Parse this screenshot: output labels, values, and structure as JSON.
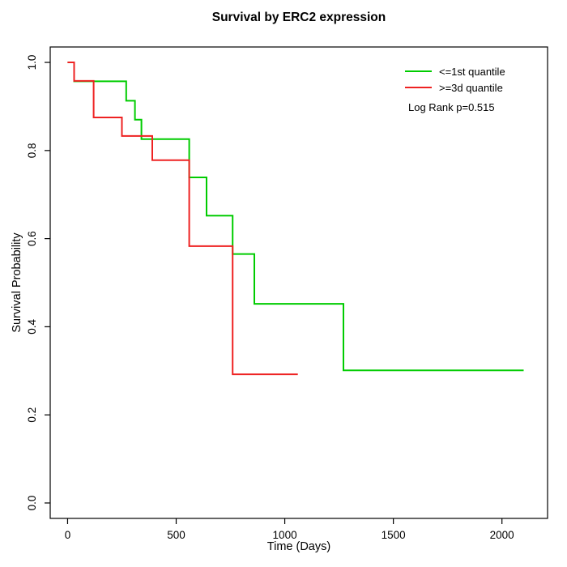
{
  "chart_data": {
    "type": "line",
    "subtype": "kaplan-meier-step",
    "title": "Survival by ERC2 expression",
    "xlabel": "Time (Days)",
    "ylabel": "Survival Probability",
    "xlim": [
      0,
      2000
    ],
    "ylim": [
      0.0,
      1.0
    ],
    "x_ticks": [
      0,
      500,
      1000,
      1500,
      2000
    ],
    "x_tick_labels": [
      "0",
      "500",
      "1000",
      "1500",
      "2000"
    ],
    "y_ticks": [
      0.0,
      0.2,
      0.4,
      0.6,
      0.8,
      1.0
    ],
    "y_tick_labels": [
      "0.0",
      "0.2",
      "0.4",
      "0.6",
      "0.8",
      "1.0"
    ],
    "grid": false,
    "legend_position": "top-right",
    "annotation": "Log Rank p=0.515",
    "series": [
      {
        "name": "<=1st quantile",
        "color": "#00cc00",
        "times": [
          0,
          30,
          270,
          310,
          340,
          560,
          640,
          760,
          860,
          1270
        ],
        "survival": [
          1.0,
          0.957,
          0.913,
          0.87,
          0.826,
          0.739,
          0.652,
          0.565,
          0.452,
          0.301
        ],
        "end_time": 2100
      },
      {
        "name": ">=3d quantile",
        "color": "#ee2222",
        "times": [
          0,
          30,
          120,
          250,
          390,
          560,
          760
        ],
        "survival": [
          1.0,
          0.958,
          0.875,
          0.833,
          0.778,
          0.583,
          0.292
        ],
        "end_time": 1060
      }
    ]
  }
}
